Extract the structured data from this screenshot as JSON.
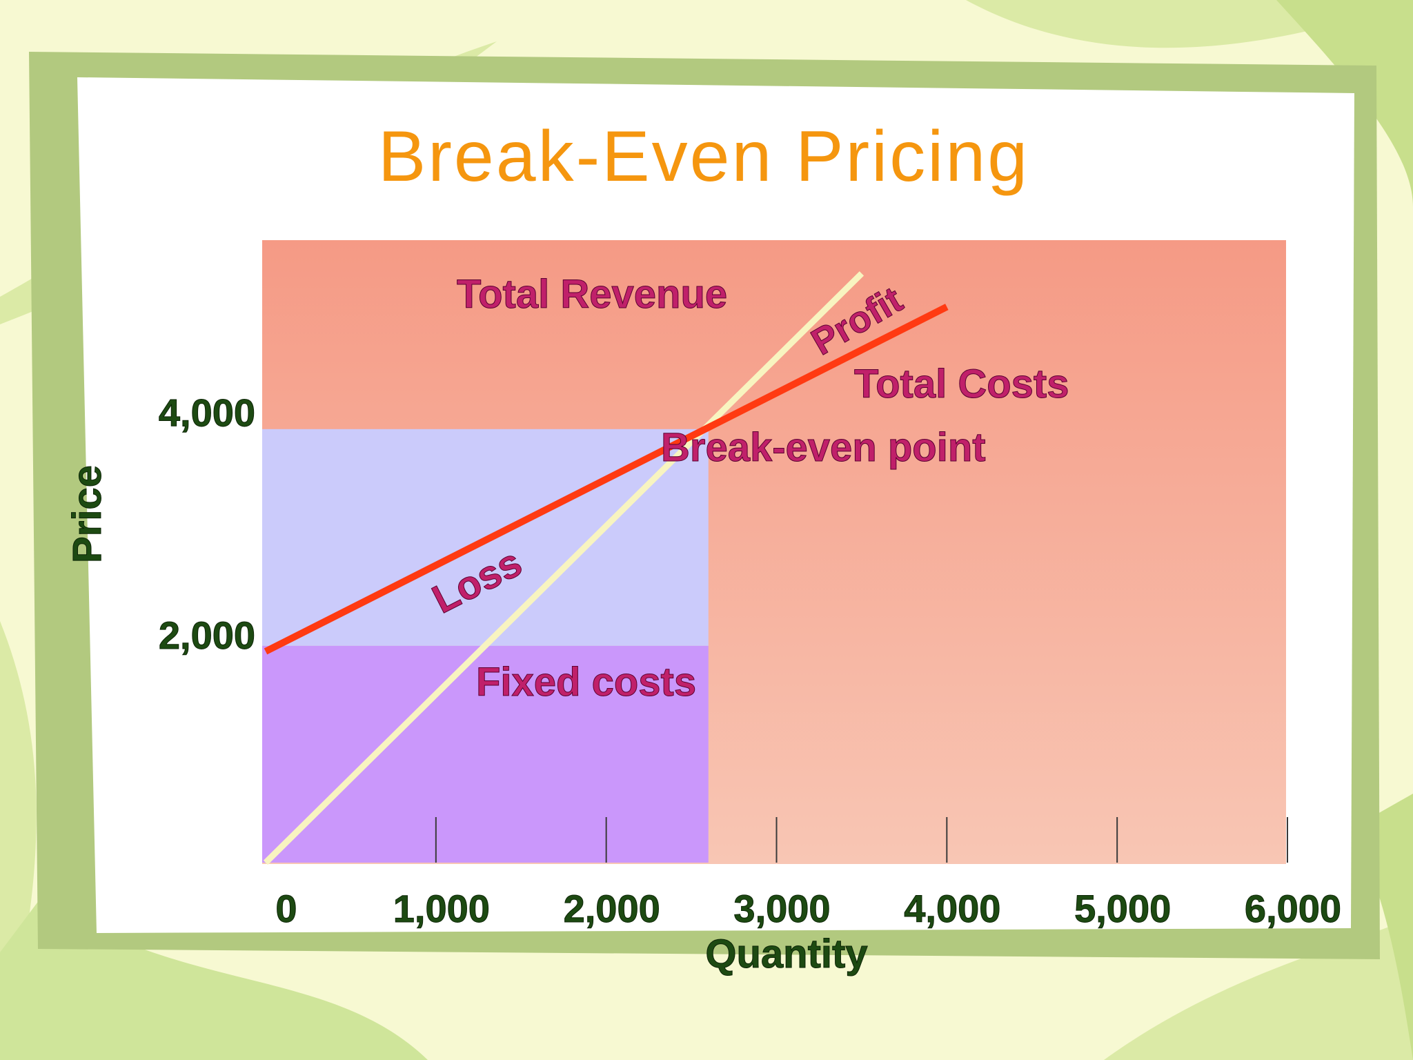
{
  "chart_data": {
    "type": "line",
    "title": "Break-Even Pricing",
    "xlabel": "Quantity",
    "ylabel": "Price",
    "x_ticks": [
      "0",
      "1,000",
      "2,000",
      "3,000",
      "4,000",
      "5,000",
      "6,000"
    ],
    "y_ticks": [
      "2,000",
      "4,000"
    ],
    "xlim": [
      0,
      6000
    ],
    "ylim": [
      0,
      5600
    ],
    "series": [
      {
        "name": "Total Revenue",
        "x": [
          0,
          3500
        ],
        "y": [
          0,
          5300
        ]
      },
      {
        "name": "Total Costs",
        "x": [
          0,
          4000
        ],
        "y": [
          1900,
          5000
        ]
      }
    ],
    "annotations": [
      {
        "text": "Fixed costs"
      },
      {
        "text": "Loss"
      },
      {
        "text": "Break-even point"
      },
      {
        "text": "Profit"
      }
    ],
    "regions": [
      {
        "name": "Fixed costs",
        "x": [
          0,
          2600
        ],
        "y": [
          0,
          1950
        ]
      },
      {
        "name": "Loss",
        "x": [
          0,
          2600
        ],
        "y": [
          1950,
          3900
        ]
      }
    ],
    "colors": {
      "revenue_line": "#f8f4c0",
      "cost_line": "#ff3a12",
      "title": "#f5960f",
      "labels": "#c0206a",
      "axis_text": "#1d4a12",
      "background_top": "#f59a85",
      "background_bottom": "#f8c6b4",
      "loss_region": "#cbcbfb",
      "fixed_region": "#ca97fb"
    }
  }
}
